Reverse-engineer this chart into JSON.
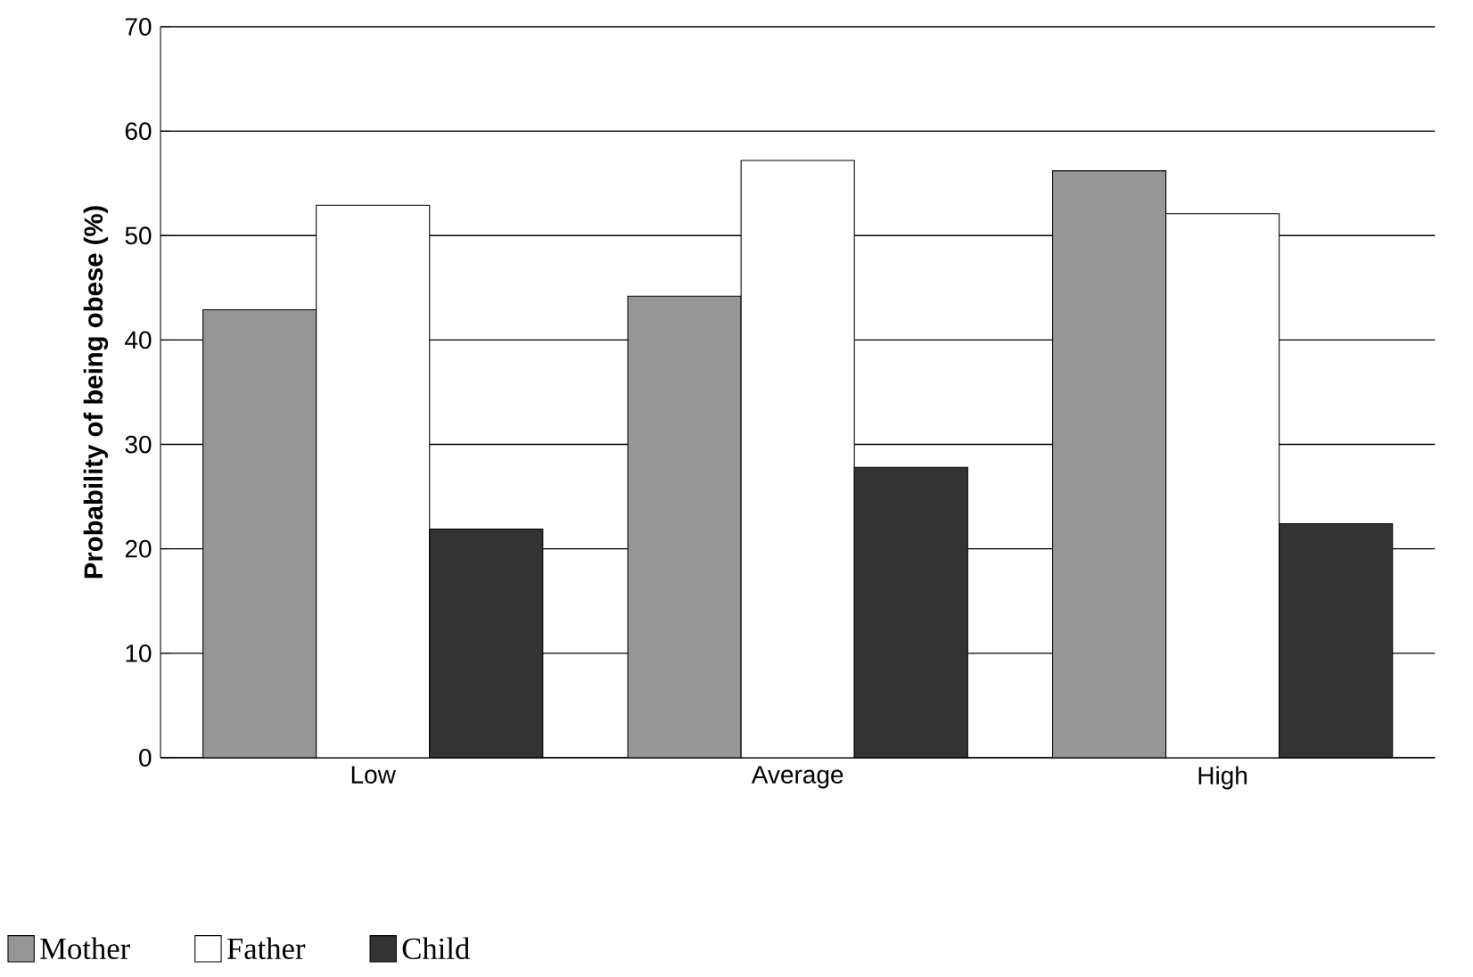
{
  "chart_data": {
    "type": "bar",
    "ylabel": "Probability of being obese (%)",
    "categories": [
      "Low",
      "Average",
      "High"
    ],
    "series": [
      {
        "name": "Mother",
        "color": "#969696",
        "values": [
          42.9,
          44.2,
          56.2
        ]
      },
      {
        "name": "Father",
        "color": "#ffffff",
        "values": [
          52.9,
          57.2,
          52.1
        ]
      },
      {
        "name": "Child",
        "color": "#333333",
        "values": [
          21.9,
          27.8,
          22.4
        ]
      }
    ],
    "ylim": [
      0,
      70
    ],
    "yticks": [
      0,
      10,
      20,
      30,
      40,
      50,
      60,
      70
    ],
    "grid": "y",
    "legend": "bottom"
  }
}
